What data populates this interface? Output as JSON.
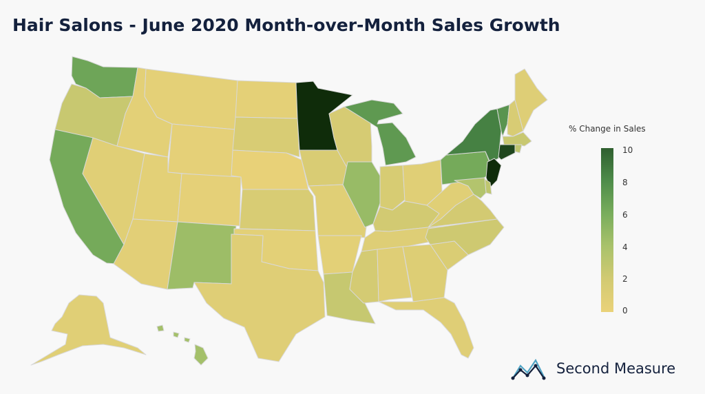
{
  "title": "Hair Salons - June 2020 Month-over-Month Sales Growth",
  "legend": {
    "title": "% Change in Sales",
    "ticks": [
      "10",
      "8",
      "6",
      "4",
      "2",
      "0"
    ],
    "min": 0,
    "max": 10,
    "colors": [
      "#ead279",
      "#d2ca72",
      "#a9c26b",
      "#79ad5c",
      "#4e8c4a",
      "#2f5f2f",
      "#0f2c0a"
    ]
  },
  "brand": {
    "name": "Second Measure",
    "icon": "zigzag-logo-icon"
  },
  "states": [
    {
      "id": "WA",
      "value": 6.5
    },
    {
      "id": "OR",
      "value": 2.5
    },
    {
      "id": "CA",
      "value": 6.2
    },
    {
      "id": "NV",
      "value": 0.8
    },
    {
      "id": "ID",
      "value": 0.6
    },
    {
      "id": "MT",
      "value": 0.5
    },
    {
      "id": "WY",
      "value": 0.4
    },
    {
      "id": "UT",
      "value": 0.6
    },
    {
      "id": "AZ",
      "value": 0.7
    },
    {
      "id": "CO",
      "value": 0.4
    },
    {
      "id": "NM",
      "value": 4.5
    },
    {
      "id": "ND",
      "value": 0.5
    },
    {
      "id": "SD",
      "value": 1.5
    },
    {
      "id": "NE",
      "value": 0.2
    },
    {
      "id": "KS",
      "value": 1.5
    },
    {
      "id": "OK",
      "value": 0.6
    },
    {
      "id": "TX",
      "value": 0.9
    },
    {
      "id": "MN",
      "value": 11.0
    },
    {
      "id": "IA",
      "value": 1.4
    },
    {
      "id": "MO",
      "value": 0.8
    },
    {
      "id": "AR",
      "value": 0.6
    },
    {
      "id": "LA",
      "value": 2.6
    },
    {
      "id": "WI",
      "value": 1.7
    },
    {
      "id": "IL",
      "value": 4.7
    },
    {
      "id": "MI",
      "value": 7.2
    },
    {
      "id": "IN",
      "value": 1.6
    },
    {
      "id": "OH",
      "value": 0.8
    },
    {
      "id": "KY",
      "value": 2.0
    },
    {
      "id": "TN",
      "value": 1.0
    },
    {
      "id": "MS",
      "value": 1.8
    },
    {
      "id": "AL",
      "value": 0.9
    },
    {
      "id": "GA",
      "value": 1.1
    },
    {
      "id": "FL",
      "value": 0.9
    },
    {
      "id": "SC",
      "value": 1.3
    },
    {
      "id": "NC",
      "value": 2.2
    },
    {
      "id": "VA",
      "value": 1.9
    },
    {
      "id": "WV",
      "value": 0.8
    },
    {
      "id": "PA",
      "value": 6.2
    },
    {
      "id": "NY",
      "value": 8.5
    },
    {
      "id": "VT",
      "value": 7.5
    },
    {
      "id": "NH",
      "value": 1.5
    },
    {
      "id": "ME",
      "value": 1.0
    },
    {
      "id": "MA",
      "value": 2.5
    },
    {
      "id": "CT",
      "value": 10.5
    },
    {
      "id": "RI",
      "value": 3.0
    },
    {
      "id": "NJ",
      "value": 11.0
    },
    {
      "id": "DE",
      "value": 3.0
    },
    {
      "id": "MD",
      "value": 3.5
    },
    {
      "id": "AK",
      "value": 0.8
    },
    {
      "id": "HI",
      "value": 4.2
    }
  ]
}
